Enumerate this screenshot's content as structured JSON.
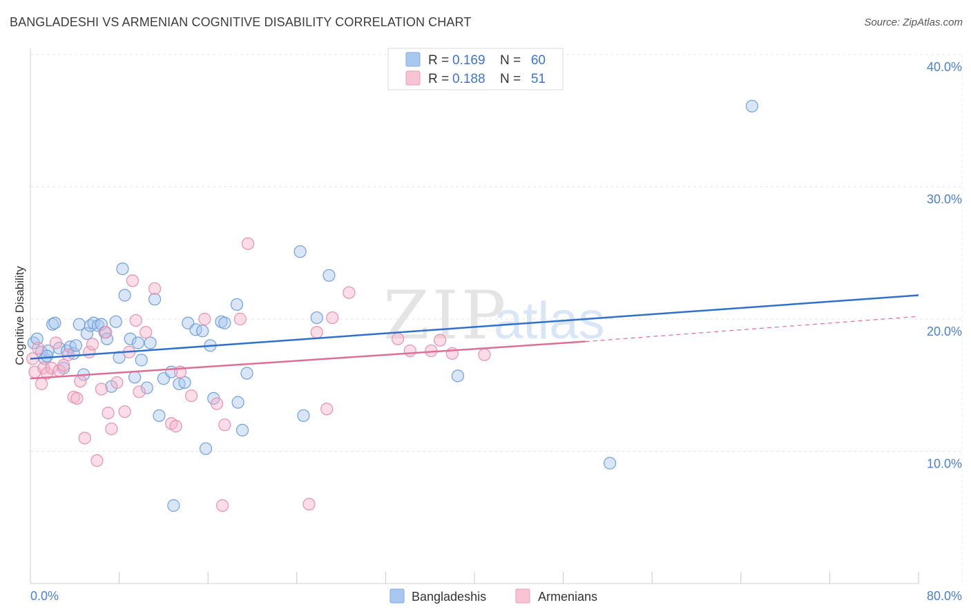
{
  "title": "BANGLADESHI VS ARMENIAN COGNITIVE DISABILITY CORRELATION CHART",
  "source": "Source: ZipAtlas.com",
  "watermark": {
    "zip": "ZIP",
    "atlas": "atlas"
  },
  "colors": {
    "blue": "#a8c8f0",
    "blue_line": "#2f6fcd",
    "pink": "#f5b3c8",
    "pink_line": "#e06d96",
    "axis_text": "#4a7fd6"
  },
  "legend": {
    "rows": [
      {
        "r_label": "R =",
        "r_value": "0.169",
        "n_label": "N =",
        "n_value": "60"
      },
      {
        "r_label": "R =",
        "r_value": "0.188",
        "n_label": "N =",
        "n_value": "51"
      }
    ]
  },
  "bottom_legend": [
    "Bangladeshis",
    "Armenians"
  ],
  "chart_data": {
    "type": "scatter",
    "xlabel": "",
    "ylabel": "Cognitive Disability",
    "xlim": [
      0,
      80
    ],
    "ylim": [
      0,
      40
    ],
    "x_tick_labels": [
      "0.0%",
      "80.0%"
    ],
    "y_ticks": [
      10,
      20,
      30,
      40
    ],
    "y_tick_labels": [
      "10.0%",
      "20.0%",
      "30.0%",
      "40.0%"
    ],
    "grid": true,
    "series": [
      {
        "name": "Bangladeshis",
        "color": "#a8c8f0",
        "trend": {
          "x0": 0,
          "y0": 17.0,
          "x1": 80,
          "y1": 21.8
        },
        "points": [
          [
            0.3,
            18.2
          ],
          [
            0.6,
            18.5
          ],
          [
            1.0,
            17.5
          ],
          [
            1.3,
            17.0
          ],
          [
            1.6,
            17.6
          ],
          [
            2.0,
            19.6
          ],
          [
            2.2,
            19.7
          ],
          [
            2.6,
            17.8
          ],
          [
            3.0,
            16.3
          ],
          [
            3.3,
            17.6
          ],
          [
            3.6,
            17.9
          ],
          [
            3.9,
            17.4
          ],
          [
            4.1,
            18.0
          ],
          [
            4.4,
            19.6
          ],
          [
            4.8,
            15.8
          ],
          [
            5.1,
            18.9
          ],
          [
            5.4,
            19.5
          ],
          [
            5.7,
            19.7
          ],
          [
            6.1,
            19.5
          ],
          [
            6.4,
            19.6
          ],
          [
            6.7,
            19.0
          ],
          [
            6.9,
            18.5
          ],
          [
            7.3,
            14.9
          ],
          [
            7.7,
            19.8
          ],
          [
            8.0,
            17.1
          ],
          [
            8.3,
            23.8
          ],
          [
            8.5,
            21.8
          ],
          [
            9.0,
            18.5
          ],
          [
            9.4,
            15.6
          ],
          [
            9.7,
            18.2
          ],
          [
            10.0,
            16.9
          ],
          [
            10.5,
            14.8
          ],
          [
            10.8,
            18.2
          ],
          [
            11.2,
            21.5
          ],
          [
            11.6,
            12.7
          ],
          [
            12.0,
            15.5
          ],
          [
            12.7,
            16.0
          ],
          [
            12.9,
            5.9
          ],
          [
            13.4,
            15.1
          ],
          [
            13.9,
            15.2
          ],
          [
            14.2,
            19.7
          ],
          [
            14.9,
            19.2
          ],
          [
            15.5,
            19.1
          ],
          [
            15.8,
            10.2
          ],
          [
            16.2,
            18.0
          ],
          [
            16.5,
            14.0
          ],
          [
            17.2,
            19.8
          ],
          [
            17.5,
            19.7
          ],
          [
            18.6,
            21.1
          ],
          [
            18.7,
            13.7
          ],
          [
            19.1,
            11.6
          ],
          [
            19.5,
            15.9
          ],
          [
            24.3,
            25.1
          ],
          [
            24.6,
            12.7
          ],
          [
            25.8,
            20.1
          ],
          [
            26.9,
            23.3
          ],
          [
            38.5,
            15.7
          ],
          [
            52.2,
            9.1
          ],
          [
            65.0,
            36.1
          ],
          [
            1.5,
            17.2
          ]
        ]
      },
      {
        "name": "Armenians",
        "color": "#f5b3c8",
        "trend": {
          "x0": 0,
          "y0": 15.5,
          "x1": 50,
          "y1": 18.3
        },
        "trend_dashed": {
          "x0": 50,
          "y0": 18.3,
          "x1": 80,
          "y1": 20.2
        },
        "points": [
          [
            0.2,
            17.0
          ],
          [
            0.4,
            16.0
          ],
          [
            0.7,
            17.8
          ],
          [
            1.0,
            15.1
          ],
          [
            1.2,
            16.3
          ],
          [
            1.5,
            15.9
          ],
          [
            1.9,
            16.3
          ],
          [
            2.3,
            18.2
          ],
          [
            2.6,
            16.1
          ],
          [
            3.0,
            16.5
          ],
          [
            3.4,
            17.3
          ],
          [
            3.9,
            14.1
          ],
          [
            4.2,
            14.0
          ],
          [
            4.5,
            15.3
          ],
          [
            4.9,
            11.0
          ],
          [
            5.3,
            17.5
          ],
          [
            5.6,
            18.1
          ],
          [
            6.0,
            9.3
          ],
          [
            6.4,
            14.7
          ],
          [
            6.8,
            19.0
          ],
          [
            7.0,
            12.9
          ],
          [
            7.3,
            11.7
          ],
          [
            7.8,
            15.2
          ],
          [
            8.5,
            13.0
          ],
          [
            8.9,
            17.5
          ],
          [
            9.2,
            22.9
          ],
          [
            9.5,
            19.9
          ],
          [
            9.8,
            14.5
          ],
          [
            10.4,
            19.0
          ],
          [
            11.2,
            22.3
          ],
          [
            12.7,
            12.1
          ],
          [
            13.1,
            11.9
          ],
          [
            13.5,
            16.0
          ],
          [
            14.5,
            14.2
          ],
          [
            15.7,
            20.0
          ],
          [
            16.8,
            13.6
          ],
          [
            17.3,
            5.9
          ],
          [
            17.5,
            12.0
          ],
          [
            18.9,
            20.0
          ],
          [
            19.6,
            25.7
          ],
          [
            25.1,
            6.0
          ],
          [
            25.8,
            19.0
          ],
          [
            26.7,
            13.2
          ],
          [
            27.2,
            20.1
          ],
          [
            28.7,
            22.0
          ],
          [
            33.1,
            18.5
          ],
          [
            34.2,
            17.6
          ],
          [
            36.1,
            17.6
          ],
          [
            36.9,
            18.4
          ],
          [
            38.0,
            17.4
          ],
          [
            40.9,
            17.3
          ]
        ]
      }
    ]
  }
}
